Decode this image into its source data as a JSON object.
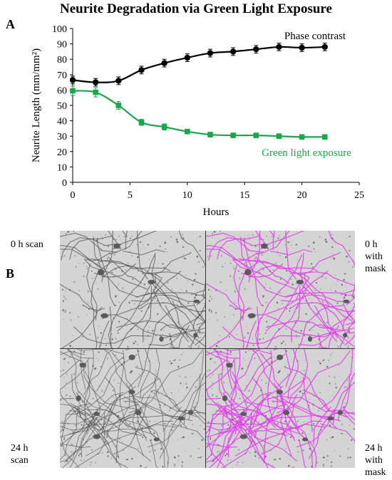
{
  "figure": {
    "title": "Neurite Degradation via Green Light Exposure",
    "panel_a_label": "A",
    "panel_b_label": "B"
  },
  "chart_data": {
    "type": "line",
    "title": "Neurite Degradation via Green Light Exposure",
    "xlabel": "Hours",
    "ylabel": "Neurite Length (mm/mm²)",
    "xlim": [
      0,
      25
    ],
    "ylim": [
      0,
      100
    ],
    "xticks": [
      0,
      5,
      10,
      15,
      20,
      25
    ],
    "yticks": [
      0,
      10,
      20,
      30,
      40,
      50,
      60,
      70,
      80,
      90,
      100
    ],
    "grid": false,
    "legend": "none",
    "series": [
      {
        "name": "Phase contrast",
        "color": "#000000",
        "marker": "circle",
        "x": [
          0,
          2,
          4,
          6,
          8,
          10,
          12,
          14,
          16,
          18,
          20,
          22
        ],
        "y": [
          66.5,
          65,
          66,
          73,
          77.5,
          81,
          84,
          85,
          86.5,
          88,
          87.5,
          88
        ],
        "error": [
          2.5,
          2.5,
          2.5,
          2.5,
          2.5,
          2.5,
          2.5,
          2.5,
          2.5,
          2.5,
          2.5,
          2.5
        ]
      },
      {
        "name": "Green light exposure",
        "color": "#1aa64a",
        "marker": "square",
        "x": [
          0,
          2,
          4,
          6,
          8,
          10,
          12,
          14,
          16,
          18,
          20,
          22
        ],
        "y": [
          59.5,
          58.5,
          50,
          39,
          36,
          33,
          31,
          30.5,
          30.5,
          30,
          29.5,
          29.5
        ],
        "error": [
          3,
          3,
          2.5,
          2,
          2,
          1.5,
          1.5,
          1.5,
          1.5,
          1.5,
          1.5,
          1.5
        ]
      }
    ]
  },
  "micrographs": {
    "labels": {
      "top_left": "0 h scan",
      "top_right_line1": "0 h",
      "top_right_line2": "with",
      "top_right_line3": "mask",
      "bottom_left_line1": "24 h",
      "bottom_left_line2": "scan",
      "bottom_right_line1": "24 h",
      "bottom_right_line2": "with",
      "bottom_right_line3": "mask"
    },
    "mask_color": "#e040e8",
    "scan_background": "#d4d4d4",
    "quadrants": [
      {
        "time": "0 h",
        "mask": false
      },
      {
        "time": "0 h",
        "mask": true
      },
      {
        "time": "24 h",
        "mask": false
      },
      {
        "time": "24 h",
        "mask": true
      }
    ]
  }
}
